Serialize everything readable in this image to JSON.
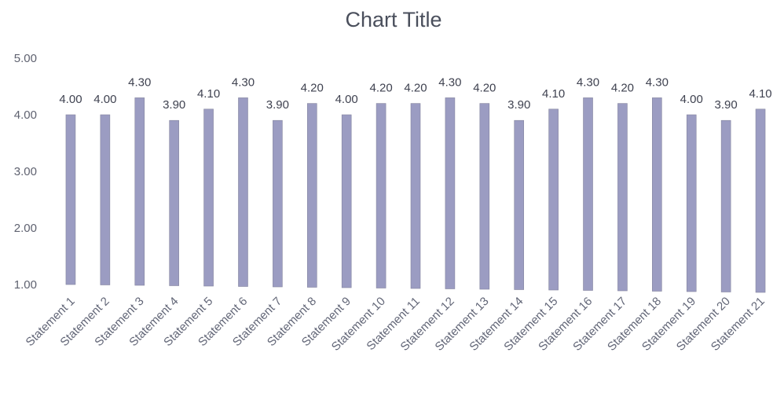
{
  "chart_data": {
    "type": "bar",
    "title": "Chart Title",
    "xlabel": "",
    "ylabel": "",
    "ylim": [
      1,
      5
    ],
    "yticks": [
      "1.00",
      "2.00",
      "3.00",
      "4.00",
      "5.00"
    ],
    "grid": false,
    "legend": "none",
    "bar_color": "#9b9cc2",
    "categories": [
      "Statement 1",
      "Statement 2",
      "Statement 3",
      "Statement 4",
      "Statement 5",
      "Statement 6",
      "Statement 7",
      "Statement 8",
      "Statement 9",
      "Statement 10",
      "Statement 11",
      "Statement 12",
      "Statement 13",
      "Statement 14",
      "Statement 15",
      "Statement 16",
      "Statement 17",
      "Statement 18",
      "Statement 19",
      "Statement 20",
      "Statement 21"
    ],
    "values": [
      4.0,
      4.0,
      4.3,
      3.9,
      4.1,
      4.3,
      3.9,
      4.2,
      4.0,
      4.2,
      4.2,
      4.3,
      4.2,
      3.9,
      4.1,
      4.3,
      4.2,
      4.3,
      4.0,
      3.9,
      4.1
    ],
    "data_labels": [
      "4.00",
      "4.00",
      "4.30",
      "3.90",
      "4.10",
      "4.30",
      "3.90",
      "4.20",
      "4.00",
      "4.20",
      "4.20",
      "4.30",
      "4.20",
      "3.90",
      "4.10",
      "4.30",
      "4.20",
      "4.30",
      "4.00",
      "3.90",
      "4.10"
    ]
  }
}
